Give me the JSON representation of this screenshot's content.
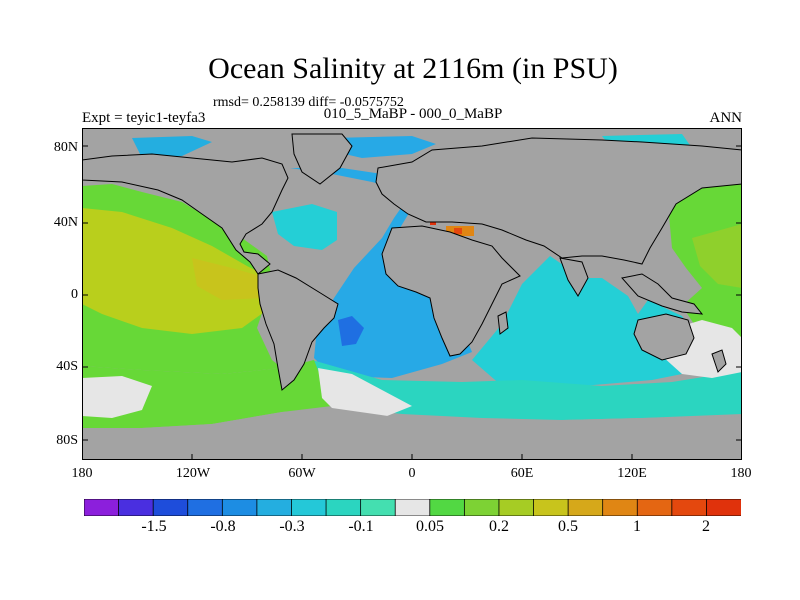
{
  "title": "Ocean Salinity at 2116m (in PSU)",
  "stats": "rmsd= 0.258139 diff= -0.0575752",
  "experiment": "Expt = teyic1-teyfa3",
  "period": "010_5_MaBP - 000_0_MaBP",
  "season": "ANN",
  "lat_labels": [
    "80N",
    "40N",
    "0",
    "40S",
    "80S"
  ],
  "lon_labels": [
    "180",
    "120W",
    "60W",
    "0",
    "60E",
    "120E",
    "180"
  ],
  "colorbar": {
    "colors": [
      "#8c1fdc",
      "#4a2fe0",
      "#1e4ddb",
      "#1f6fe2",
      "#1d8de3",
      "#24aee0",
      "#24c8d8",
      "#2bd5c0",
      "#44dfb0",
      "#e6e6e6",
      "#52d843",
      "#7dd234",
      "#a6cc24",
      "#c8c41c",
      "#d6a81a",
      "#e08614",
      "#e46612",
      "#e4480e",
      "#e0320c"
    ],
    "labels": [
      "-1.5",
      "-0.8",
      "-0.3",
      "-0.1",
      "0.05",
      "0.2",
      "0.5",
      "1",
      "2"
    ]
  },
  "map_colors": {
    "land": "#a3a3a3",
    "coast": "#000000",
    "atlantic": "#27a9e6",
    "indian": "#24cfd6",
    "pacific_west": "#67d837",
    "pacific_core": "#b9cf1c",
    "southern": "#2bd5c0",
    "neutral": "#e6e6e6",
    "med": "#e08614"
  }
}
